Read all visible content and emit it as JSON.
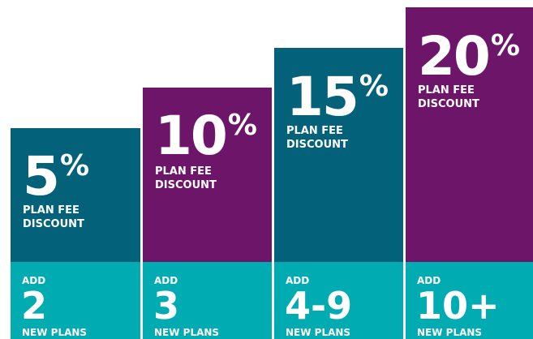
{
  "colors": {
    "teal_dark": "#03627a",
    "purple": "#6d1569",
    "teal_light": "#00abb2"
  },
  "tiers": [
    {
      "percent": "5",
      "percent_sign": "%",
      "discount_line1": "PLAN FEE",
      "discount_line2": "DISCOUNT",
      "add_label": "ADD",
      "plans_count": "2",
      "plans_label": "NEW PLANS"
    },
    {
      "percent": "10",
      "percent_sign": "%",
      "discount_line1": "PLAN FEE",
      "discount_line2": "DISCOUNT",
      "add_label": "ADD",
      "plans_count": "3",
      "plans_label": "NEW PLANS"
    },
    {
      "percent": "15",
      "percent_sign": "%",
      "discount_line1": "PLAN FEE",
      "discount_line2": "DISCOUNT",
      "add_label": "ADD",
      "plans_count": "4-9",
      "plans_label": "NEW PLANS"
    },
    {
      "percent": "20",
      "percent_sign": "%",
      "discount_line1": "PLAN FEE",
      "discount_line2": "DISCOUNT",
      "add_label": "ADD",
      "plans_count": "10+",
      "plans_label": "NEW PLANS"
    }
  ]
}
